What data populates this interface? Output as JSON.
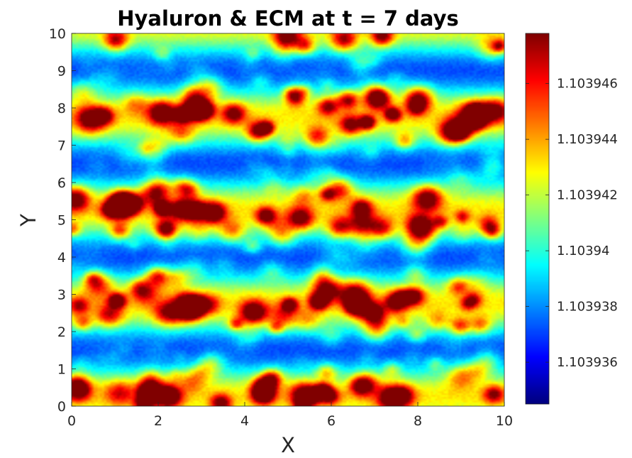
{
  "chart_data": {
    "type": "heatmap",
    "title": "Hyaluron & ECM at t = 7 days",
    "xlabel": "X",
    "ylabel": "Y",
    "xlim": [
      0,
      10
    ],
    "ylim": [
      0,
      10
    ],
    "x_ticks": [
      "0",
      "2",
      "4",
      "6",
      "8",
      "10"
    ],
    "y_ticks": [
      "0",
      "1",
      "2",
      "3",
      "4",
      "5",
      "6",
      "7",
      "8",
      "9",
      "10"
    ],
    "colormap": "jet",
    "colorbar": {
      "range": [
        1.1039345,
        1.1039478
      ],
      "ticks": [
        {
          "value": 1.103936,
          "label": "1.103936"
        },
        {
          "value": 1.103938,
          "label": "1.103938"
        },
        {
          "value": 1.10394,
          "label": "1.10394"
        },
        {
          "value": 1.103942,
          "label": "1.103942"
        },
        {
          "value": 1.103944,
          "label": "1.103944"
        },
        {
          "value": 1.103946,
          "label": "1.103946"
        }
      ]
    },
    "pattern": {
      "description_of_field": "horizontal bands",
      "low_band_y": [
        0.85,
        3.7,
        6.3,
        8.85
      ],
      "high_band_y": [
        0.25,
        2.5,
        5.0,
        7.5,
        9.8
      ],
      "grid": [
        200,
        200
      ]
    }
  }
}
